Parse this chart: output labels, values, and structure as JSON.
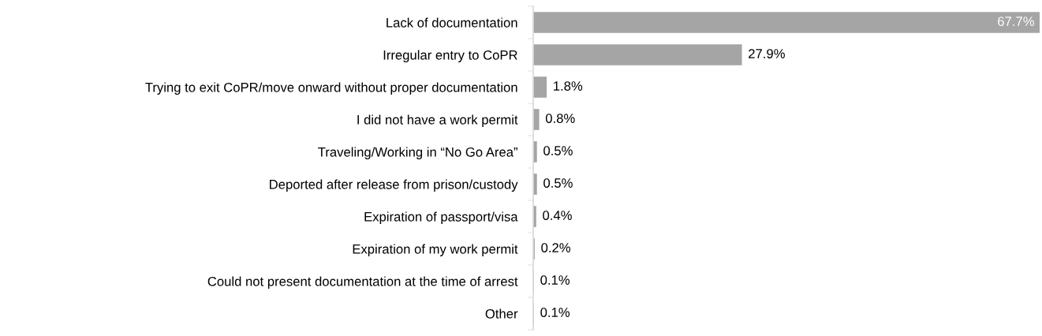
{
  "chart_data": {
    "type": "bar",
    "orientation": "horizontal",
    "categories": [
      "Lack of documentation",
      "Irregular entry to CoPR",
      "Trying to exit CoPR/move onward without proper documentation",
      "I did not have a work permit",
      "Traveling/Working in “No Go Area”",
      "Deported after release from prison/custody",
      "Expiration of passport/visa",
      "Expiration of my work permit",
      "Could not present documentation at the time of arrest",
      "Other"
    ],
    "values": [
      67.7,
      27.9,
      1.8,
      0.8,
      0.5,
      0.5,
      0.4,
      0.2,
      0.1,
      0.1
    ],
    "value_labels": [
      "67.7%",
      "27.9%",
      "1.8%",
      "0.8%",
      "0.5%",
      "0.5%",
      "0.4%",
      "0.2%",
      "0.1%",
      "0.1%"
    ],
    "color": "#a5a5a5",
    "grid": false,
    "legend": false
  }
}
